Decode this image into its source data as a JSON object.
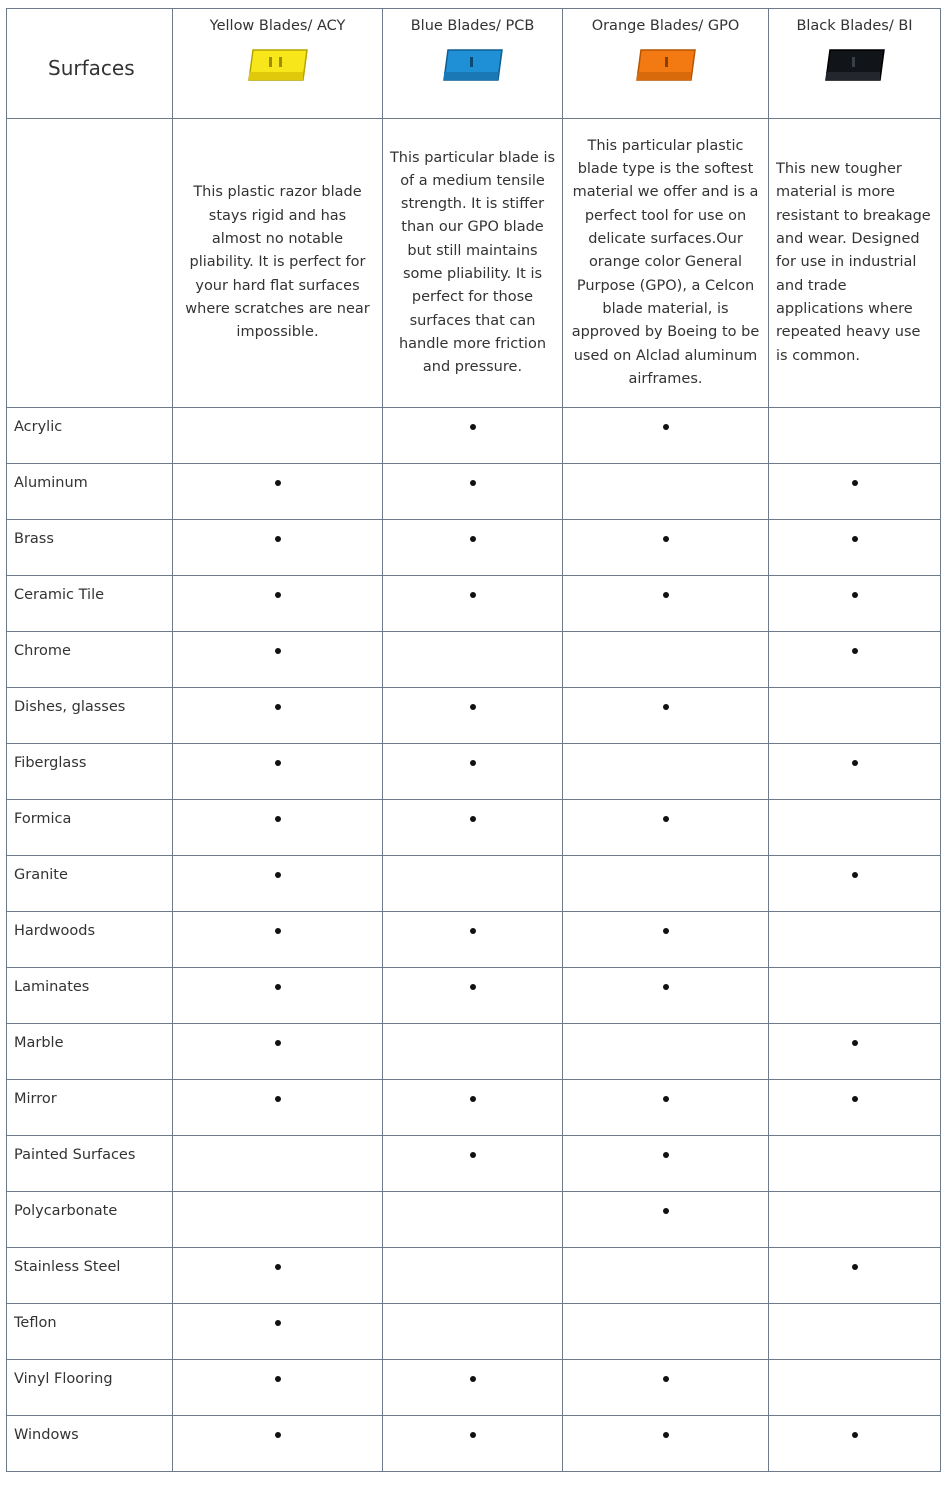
{
  "header": {
    "surfaces_label": "Surfaces",
    "blades": [
      {
        "name": "Yellow Blades/ ACY",
        "color": "#f7e619",
        "icon": "yellow-blade-icon"
      },
      {
        "name": "Blue Blades/ PCB",
        "color": "#1f8fd6",
        "icon": "blue-blade-icon"
      },
      {
        "name": "Orange Blades/ GPO",
        "color": "#f37a12",
        "icon": "orange-blade-icon"
      },
      {
        "name": "Black Blades/ BI",
        "color": "#111418",
        "icon": "black-blade-icon"
      }
    ]
  },
  "descriptions": [
    "This plastic razor blade stays rigid and has almost no notable pliability. It is perfect for your hard flat surfaces where scratches are near impossible.",
    "This particular blade is of a medium tensile strength. It is stiffer than our GPO blade but still maintains some pliability. It is perfect for those surfaces that can handle more friction and pressure.",
    "This particular plastic blade type is the softest material we offer and is a perfect tool for use on delicate surfaces.Our orange color General Purpose (GPO), a Celcon blade material, is approved by Boeing to be used on Alclad aluminum airframes.",
    "This new tougher material is more resistant to breakage and wear. Designed for use in industrial and trade applications where repeated heavy use is common."
  ],
  "rows": [
    {
      "surface": "Acrylic",
      "marks": [
        false,
        true,
        true,
        false
      ]
    },
    {
      "surface": "Aluminum",
      "marks": [
        true,
        true,
        false,
        true
      ]
    },
    {
      "surface": "Brass",
      "marks": [
        true,
        true,
        true,
        true
      ]
    },
    {
      "surface": "Ceramic Tile",
      "marks": [
        true,
        true,
        true,
        true
      ]
    },
    {
      "surface": "Chrome",
      "marks": [
        true,
        false,
        false,
        true
      ]
    },
    {
      "surface": "Dishes, glasses",
      "marks": [
        true,
        true,
        true,
        false
      ]
    },
    {
      "surface": "Fiberglass",
      "marks": [
        true,
        true,
        false,
        true
      ]
    },
    {
      "surface": "Formica",
      "marks": [
        true,
        true,
        true,
        false
      ]
    },
    {
      "surface": "Granite",
      "marks": [
        true,
        false,
        false,
        true
      ]
    },
    {
      "surface": "Hardwoods",
      "marks": [
        true,
        true,
        true,
        false
      ]
    },
    {
      "surface": "Laminates",
      "marks": [
        true,
        true,
        true,
        false
      ]
    },
    {
      "surface": "Marble",
      "marks": [
        true,
        false,
        false,
        true
      ]
    },
    {
      "surface": "Mirror",
      "marks": [
        true,
        true,
        true,
        true
      ]
    },
    {
      "surface": "Painted Surfaces",
      "marks": [
        false,
        true,
        true,
        false
      ]
    },
    {
      "surface": "Polycarbonate",
      "marks": [
        false,
        false,
        true,
        false
      ]
    },
    {
      "surface": "Stainless Steel",
      "marks": [
        true,
        false,
        false,
        true
      ]
    },
    {
      "surface": "Teflon",
      "marks": [
        true,
        false,
        false,
        false
      ]
    },
    {
      "surface": "Vinyl Flooring",
      "marks": [
        true,
        true,
        true,
        false
      ]
    },
    {
      "surface": "Windows",
      "marks": [
        true,
        true,
        true,
        true
      ]
    }
  ]
}
